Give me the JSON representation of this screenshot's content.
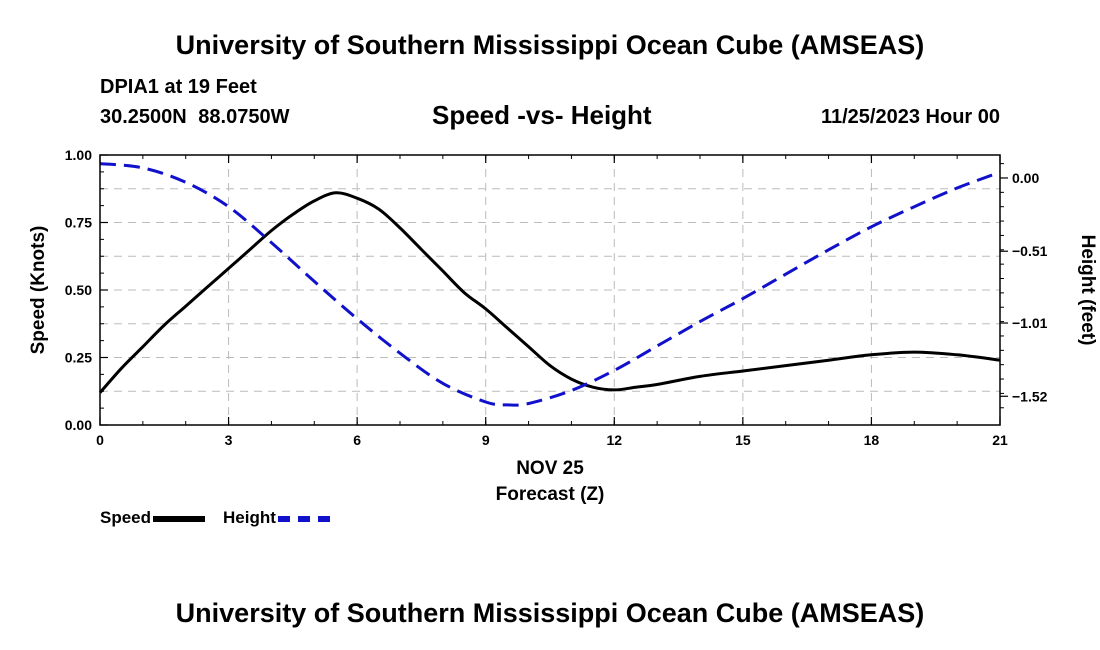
{
  "header": {
    "title": "University of Southern Mississippi Ocean Cube (AMSEAS)",
    "station": "DPIA1 at 19 Feet",
    "coords": "30.2500N  88.0750W",
    "subtitle": "Speed -vs- Height",
    "datetime": "11/25/2023 Hour 00"
  },
  "footer": {
    "title": "University of Southern Mississippi Ocean Cube (AMSEAS)"
  },
  "legend": {
    "speed": "Speed",
    "height": "Height"
  },
  "chart_data": {
    "type": "line",
    "title": "Speed -vs- Height",
    "xlabel": "Forecast (Z)",
    "xlabel_date": "NOV 25",
    "ylabel": "Speed (Knots)",
    "y2label": "Height (feet)",
    "xlim": [
      0,
      21
    ],
    "ylim": [
      0,
      1
    ],
    "y2lim": [
      -1.72,
      0.16
    ],
    "x_ticks": [
      "0",
      "3",
      "6",
      "9",
      "12",
      "15",
      "18",
      "21"
    ],
    "x_tick_values": [
      0,
      3,
      6,
      9,
      12,
      15,
      18,
      21
    ],
    "y_ticks": [
      "0.00",
      "0.25",
      "0.50",
      "0.75",
      "1.00"
    ],
    "y_tick_values": [
      0,
      0.25,
      0.5,
      0.75,
      1.0
    ],
    "y2_ticks": [
      "0.00",
      "−0.51",
      "−1.01",
      "−1.52"
    ],
    "y2_tick_values": [
      0.0,
      -0.51,
      -1.01,
      -1.52
    ],
    "grid": true,
    "series": [
      {
        "name": "Speed",
        "axis": "left",
        "color": "#000000",
        "style": "solid",
        "x": [
          0,
          0.5,
          1,
          1.5,
          2,
          2.5,
          3,
          3.5,
          4,
          4.5,
          5,
          5.5,
          6,
          6.5,
          7,
          7.5,
          8,
          8.5,
          9,
          9.5,
          10,
          10.5,
          11,
          11.5,
          12,
          12.5,
          13,
          14,
          15,
          16,
          17,
          18,
          19,
          20,
          21
        ],
        "values": [
          0.12,
          0.21,
          0.29,
          0.37,
          0.44,
          0.51,
          0.58,
          0.65,
          0.72,
          0.78,
          0.83,
          0.86,
          0.84,
          0.8,
          0.73,
          0.65,
          0.57,
          0.49,
          0.43,
          0.36,
          0.29,
          0.22,
          0.17,
          0.14,
          0.13,
          0.14,
          0.15,
          0.18,
          0.2,
          0.22,
          0.24,
          0.26,
          0.27,
          0.26,
          0.24
        ]
      },
      {
        "name": "Height",
        "axis": "right",
        "color": "#1111cc",
        "style": "dashed",
        "x": [
          0,
          1,
          2,
          3,
          4,
          5,
          6,
          7,
          8,
          9,
          9.5,
          10,
          11,
          12,
          13,
          14,
          15,
          16,
          17,
          18,
          19,
          20,
          21
        ],
        "values": [
          0.1,
          0.07,
          -0.03,
          -0.2,
          -0.45,
          -0.72,
          -0.98,
          -1.22,
          -1.43,
          -1.56,
          -1.58,
          -1.57,
          -1.48,
          -1.34,
          -1.17,
          -1.0,
          -0.84,
          -0.67,
          -0.5,
          -0.34,
          -0.2,
          -0.07,
          0.04
        ]
      }
    ]
  }
}
